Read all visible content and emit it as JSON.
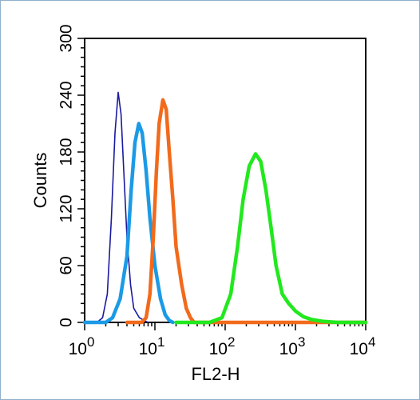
{
  "chart_data": {
    "type": "line",
    "title": "",
    "xlabel": "FL2-H",
    "ylabel": "Counts",
    "x_scale": "log",
    "xlim": [
      1,
      10000
    ],
    "ylim": [
      0,
      300
    ],
    "y_ticks": [
      0,
      60,
      120,
      180,
      240,
      300
    ],
    "y_tick_labels": [
      "0",
      "60",
      "120",
      "180",
      "240",
      "300"
    ],
    "x_ticks": [
      {
        "value": 1,
        "base": "10",
        "exp": "0"
      },
      {
        "value": 10,
        "base": "10",
        "exp": "1"
      },
      {
        "value": 100,
        "base": "10",
        "exp": "2"
      },
      {
        "value": 1000,
        "base": "10",
        "exp": "3"
      },
      {
        "value": 10000,
        "base": "10",
        "exp": "4"
      }
    ],
    "grid": false,
    "legend": "none",
    "series": [
      {
        "color": "#1a1aa0",
        "stroke": "thin",
        "points": [
          [
            1,
            0
          ],
          [
            1.5,
            0
          ],
          [
            1.8,
            5
          ],
          [
            2.1,
            30
          ],
          [
            2.4,
            110
          ],
          [
            2.7,
            200
          ],
          [
            3.0,
            243
          ],
          [
            3.3,
            220
          ],
          [
            3.6,
            160
          ],
          [
            4.0,
            90
          ],
          [
            4.5,
            40
          ],
          [
            5.0,
            15
          ],
          [
            6.0,
            5
          ],
          [
            7.0,
            2
          ],
          [
            8.0,
            0
          ]
        ]
      },
      {
        "color": "#1b9ae6",
        "stroke": "thick",
        "points": [
          [
            1,
            0
          ],
          [
            2.0,
            0
          ],
          [
            2.5,
            5
          ],
          [
            3.2,
            25
          ],
          [
            4.0,
            70
          ],
          [
            4.6,
            140
          ],
          [
            5.2,
            190
          ],
          [
            5.9,
            210
          ],
          [
            6.6,
            200
          ],
          [
            7.5,
            160
          ],
          [
            8.5,
            110
          ],
          [
            10,
            60
          ],
          [
            12,
            25
          ],
          [
            14,
            8
          ],
          [
            16,
            2
          ],
          [
            18,
            0
          ]
        ]
      },
      {
        "color": "#f26a1b",
        "stroke": "thick",
        "points": [
          [
            4.0,
            0
          ],
          [
            6.5,
            0
          ],
          [
            7.5,
            5
          ],
          [
            8.5,
            30
          ],
          [
            9.5,
            90
          ],
          [
            10.5,
            160
          ],
          [
            11.5,
            210
          ],
          [
            13,
            235
          ],
          [
            14.5,
            225
          ],
          [
            16,
            180
          ],
          [
            18,
            130
          ],
          [
            20,
            80
          ],
          [
            24,
            40
          ],
          [
            28,
            15
          ],
          [
            32,
            5
          ],
          [
            36,
            0
          ],
          [
            100,
            0
          ],
          [
            10000,
            0
          ]
        ]
      },
      {
        "color": "#22e81e",
        "stroke": "thick",
        "points": [
          [
            20,
            0
          ],
          [
            40,
            0
          ],
          [
            60,
            0
          ],
          [
            90,
            5
          ],
          [
            120,
            30
          ],
          [
            150,
            80
          ],
          [
            180,
            130
          ],
          [
            220,
            165
          ],
          [
            270,
            178
          ],
          [
            320,
            170
          ],
          [
            380,
            140
          ],
          [
            450,
            100
          ],
          [
            530,
            60
          ],
          [
            650,
            30
          ],
          [
            800,
            20
          ],
          [
            1000,
            12
          ],
          [
            1300,
            6
          ],
          [
            1700,
            3
          ],
          [
            2500,
            1
          ],
          [
            4000,
            0
          ],
          [
            10000,
            0
          ]
        ]
      }
    ]
  }
}
